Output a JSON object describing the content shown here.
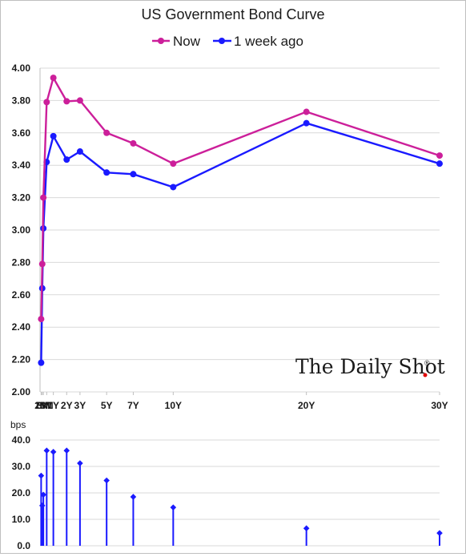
{
  "chart_data": [
    {
      "type": "line",
      "title": "US Government Bond Curve",
      "categories": [
        "1M",
        "2M",
        "3M",
        "6M",
        "1Y",
        "2Y",
        "3Y",
        "5Y",
        "7Y",
        "10Y",
        "20Y",
        "30Y"
      ],
      "x_years": [
        0.0833,
        0.1667,
        0.25,
        0.5,
        1,
        2,
        3,
        5,
        7,
        10,
        20,
        30
      ],
      "series": [
        {
          "name": "Now",
          "color": "#cc1f9a",
          "values": [
            2.45,
            2.79,
            3.2,
            3.79,
            3.94,
            3.795,
            3.8,
            3.6,
            3.535,
            3.41,
            3.73,
            3.46
          ]
        },
        {
          "name": "1 week ago",
          "color": "#1a1aff",
          "values": [
            2.18,
            2.64,
            3.01,
            3.42,
            3.58,
            3.435,
            3.485,
            3.355,
            3.345,
            3.265,
            3.66,
            3.41
          ]
        }
      ],
      "ylim": [
        2.0,
        4.0
      ],
      "y_ticks": [
        "2.00",
        "2.20",
        "2.40",
        "2.60",
        "2.80",
        "3.00",
        "3.20",
        "3.40",
        "3.60",
        "3.80",
        "4.00"
      ],
      "x_tick_labels": [
        "1M",
        "2M",
        "3M",
        "6M",
        "1Y",
        "2Y",
        "3Y",
        "5Y",
        "7Y",
        "10Y",
        "20Y",
        "30Y"
      ],
      "grid": "horizontal",
      "legend": "top-center"
    },
    {
      "type": "bar",
      "subtype": "stem",
      "categories": [
        "1M",
        "2M",
        "3M",
        "6M",
        "1Y",
        "2Y",
        "3Y",
        "5Y",
        "7Y",
        "10Y",
        "20Y",
        "30Y"
      ],
      "values": [
        26.5,
        15.2,
        19.3,
        36.0,
        35.5,
        36.0,
        31.2,
        24.7,
        18.5,
        14.5,
        6.6,
        4.8
      ],
      "ylabel": "bps",
      "ylim": [
        0,
        40
      ],
      "y_ticks": [
        "0.0",
        "10.0",
        "20.0",
        "30.0",
        "40.0"
      ],
      "color": "#1a1aff",
      "grid": "horizontal"
    }
  ],
  "watermark": {
    "text": "The Daily Shot",
    "mark": "®"
  }
}
